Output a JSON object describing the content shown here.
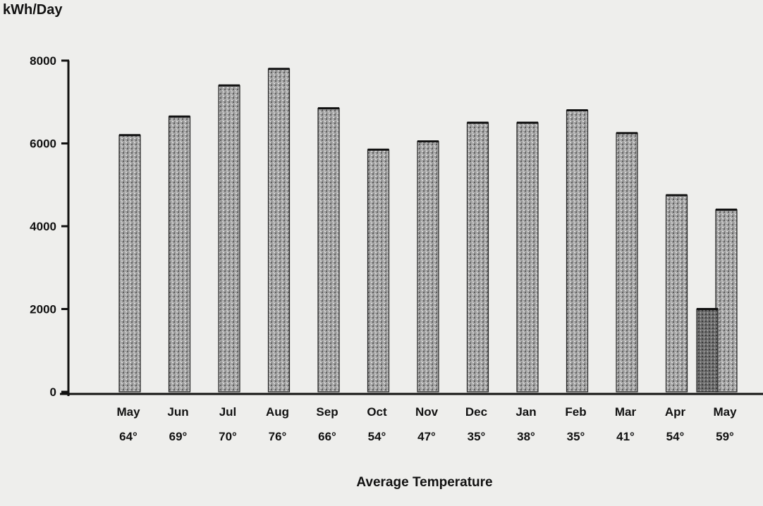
{
  "chart_data": {
    "type": "bar",
    "ylabel": "kWh/Day",
    "xlabel": "Average Temperature",
    "ylim": [
      0,
      8000
    ],
    "yticks": [
      0,
      2000,
      4000,
      6000,
      8000
    ],
    "categories": [
      "May",
      "Jun",
      "Jul",
      "Aug",
      "Sep",
      "Oct",
      "Nov",
      "Dec",
      "Jan",
      "Feb",
      "Mar",
      "Apr",
      "May"
    ],
    "temperatures": [
      "64°",
      "69°",
      "70°",
      "76°",
      "66°",
      "54°",
      "47°",
      "35°",
      "38°",
      "35°",
      "41°",
      "54°",
      "59°"
    ],
    "series": [
      {
        "values": [
          6200,
          6650,
          7400,
          7800,
          6850,
          5850,
          6050,
          6500,
          6500,
          6800,
          6250,
          4750,
          4400
        ]
      }
    ],
    "secondary_bar": {
      "category_index": 12,
      "value": 2000
    },
    "grid": false,
    "colors": {
      "bar": "#9a9a9a",
      "bar_dark": "#6e6e6e",
      "axis": "#111111"
    }
  }
}
